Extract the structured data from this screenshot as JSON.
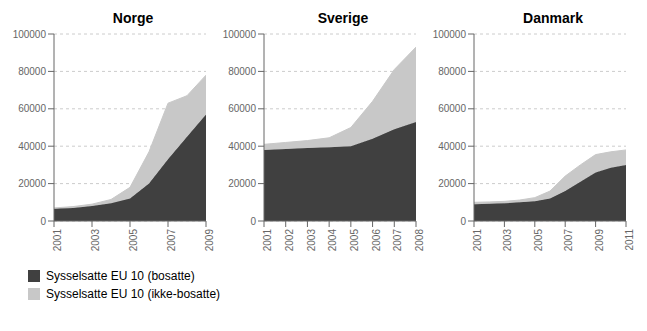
{
  "chart_data": [
    {
      "type": "area",
      "stacked": true,
      "title": "Norge",
      "x": [
        2001,
        2002,
        2003,
        2004,
        2005,
        2006,
        2007,
        2008,
        2009
      ],
      "series": [
        {
          "name": "Sysselsatte EU 10 (bosatte)",
          "color": "#404040",
          "values": [
            6500,
            7000,
            8000,
            9500,
            12000,
            20000,
            33000,
            45000,
            57000
          ]
        },
        {
          "name": "Sysselsatte EU 10 (ikke-bosatte)",
          "color": "#c8c8c8",
          "values": [
            500,
            700,
            1000,
            2000,
            6000,
            17000,
            30000,
            22000,
            21000
          ]
        }
      ],
      "xlim": [
        2001,
        2009
      ],
      "xticks": [
        2001,
        2003,
        2005,
        2007,
        2009
      ],
      "ylim": [
        0,
        100000
      ],
      "yticks": [
        0,
        20000,
        40000,
        60000,
        80000,
        100000
      ],
      "grid": true,
      "legend": "lower left"
    },
    {
      "type": "area",
      "stacked": true,
      "title": "Sverige",
      "x": [
        2001,
        2002,
        2003,
        2004,
        2005,
        2006,
        2007,
        2008
      ],
      "series": [
        {
          "name": "Sysselsatte EU 10 (bosatte)",
          "color": "#404040",
          "values": [
            38000,
            38500,
            39000,
            39500,
            40000,
            44000,
            49000,
            53000
          ]
        },
        {
          "name": "Sysselsatte EU 10 (ikke-bosatte)",
          "color": "#c8c8c8",
          "values": [
            3000,
            3500,
            4000,
            5000,
            10000,
            20000,
            32000,
            40000
          ]
        }
      ],
      "xlim": [
        2001,
        2008
      ],
      "xticks": [
        2001,
        2002,
        2003,
        2004,
        2005,
        2006,
        2007,
        2008
      ],
      "ylim": [
        0,
        100000
      ],
      "yticks": [
        0,
        20000,
        40000,
        60000,
        80000,
        100000
      ],
      "grid": true,
      "legend": "lower left"
    },
    {
      "type": "area",
      "stacked": true,
      "title": "Danmark",
      "x": [
        2001,
        2002,
        2003,
        2004,
        2005,
        2006,
        2007,
        2008,
        2009,
        2010,
        2011
      ],
      "series": [
        {
          "name": "Sysselsatte EU 10 (bosatte)",
          "color": "#404040",
          "values": [
            9000,
            9200,
            9500,
            10000,
            10500,
            12000,
            16000,
            21000,
            26000,
            28500,
            30000
          ]
        },
        {
          "name": "Sysselsatte EU 10 (ikke-bosatte)",
          "color": "#c8c8c8",
          "values": [
            1000,
            1000,
            1000,
            1200,
            2000,
            4000,
            8000,
            9000,
            9500,
            8500,
            8000
          ]
        }
      ],
      "xlim": [
        2001,
        2011
      ],
      "xticks": [
        2001,
        2003,
        2005,
        2007,
        2009,
        2011
      ],
      "ylim": [
        0,
        100000
      ],
      "yticks": [
        0,
        20000,
        40000,
        60000,
        80000,
        100000
      ],
      "grid": true,
      "legend": "lower left"
    }
  ]
}
